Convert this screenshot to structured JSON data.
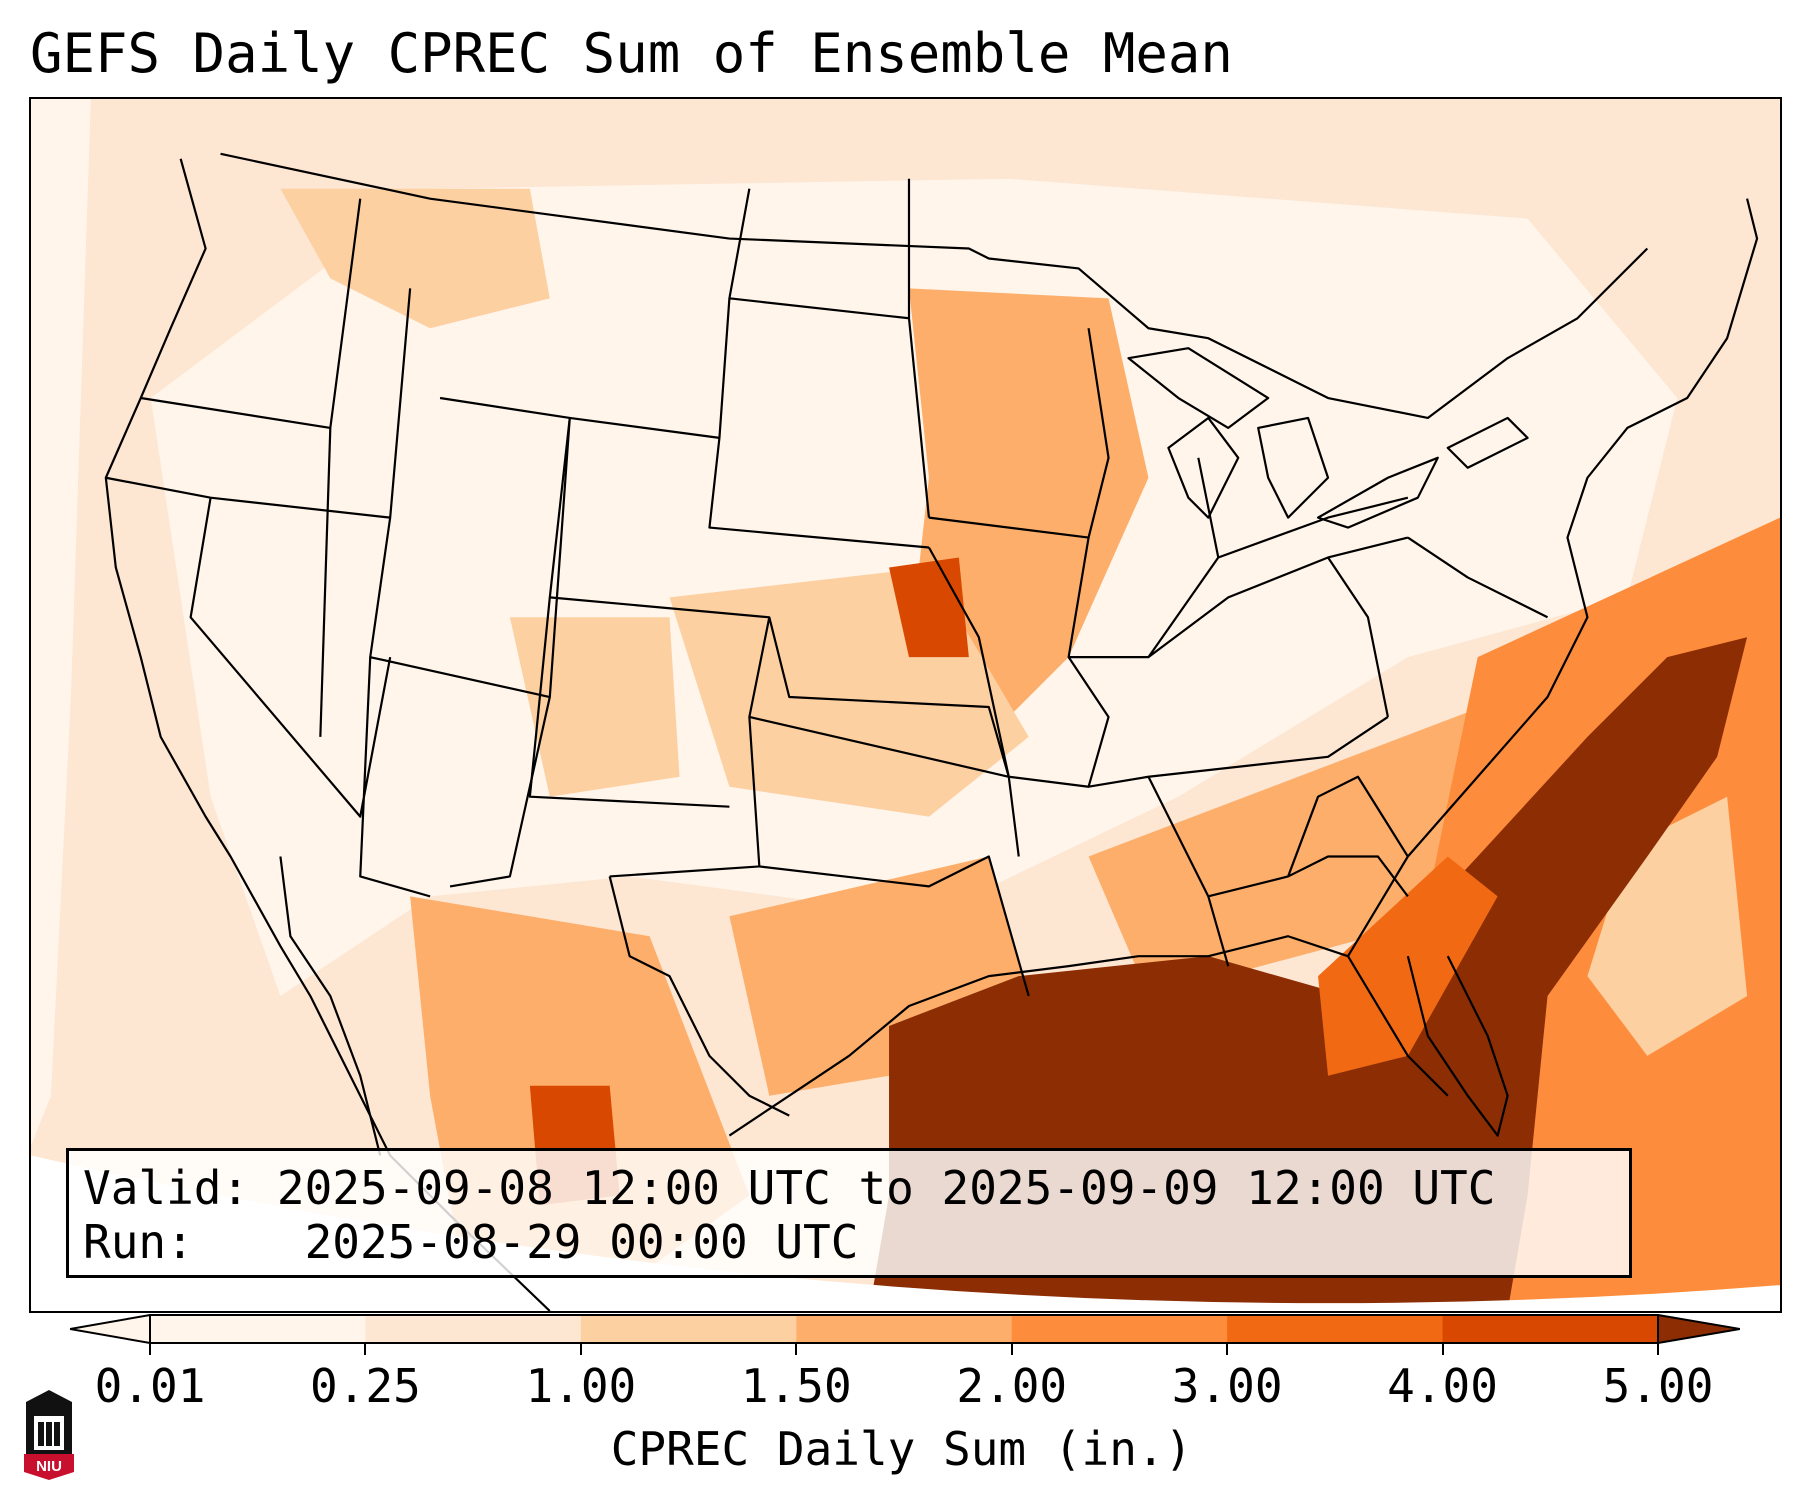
{
  "title": "GEFS Daily CPREC Sum of Ensemble Mean",
  "info": {
    "valid_label": "Valid:",
    "valid_text": "2025-09-08 12:00 UTC to 2025-09-09 12:00 UTC",
    "run_label": "Run:",
    "run_text": "2025-08-29 00:00 UTC"
  },
  "colorbar": {
    "title": "CPREC Daily Sum (in.)",
    "ticks": [
      "0.01",
      "0.25",
      "1.00",
      "1.50",
      "2.00",
      "3.00",
      "4.00",
      "5.00"
    ],
    "colors": [
      "#fff5eb",
      "#fde6d2",
      "#fdd0a2",
      "#fdae6b",
      "#fd8d3c",
      "#f16913",
      "#d94801",
      "#8c2d04"
    ]
  },
  "logo": {
    "text": "NIU",
    "colors": {
      "red": "#c8102e",
      "black": "#111111"
    }
  },
  "map": {
    "projection": "Lambert Conformal CONUS",
    "ocean_color": "#fde6d2",
    "land_color": "#fff5eb",
    "heavy_color": "#8c2d04"
  }
}
